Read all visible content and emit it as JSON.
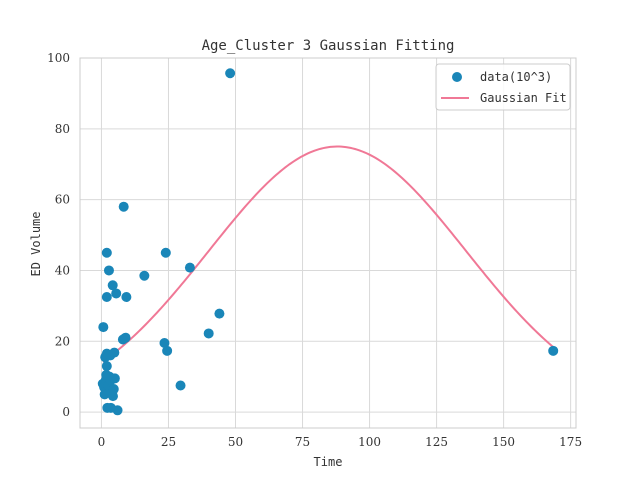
{
  "chart_data": {
    "type": "scatter",
    "title": "Age_Cluster 3 Gaussian Fitting",
    "xlabel": "Time",
    "ylabel": "ED Volume",
    "xlim": [
      -8,
      177
    ],
    "ylim": [
      -4.5,
      100
    ],
    "xticks": [
      0,
      25,
      50,
      75,
      100,
      125,
      150,
      175
    ],
    "yticks": [
      0,
      20,
      40,
      60,
      80,
      100
    ],
    "grid": true,
    "legend": "top-right",
    "colors": {
      "points": "#1a86b8",
      "fit": "#f07896",
      "grid": "#d9d9d9",
      "spine": "#cccccc"
    },
    "series": [
      {
        "name": "data(10^3)",
        "kind": "scatter",
        "points": [
          [
            0.5,
            8
          ],
          [
            0.7,
            24
          ],
          [
            1,
            7
          ],
          [
            1.2,
            5
          ],
          [
            1.4,
            15.5
          ],
          [
            1.6,
            9
          ],
          [
            1.8,
            10.5
          ],
          [
            2,
            45
          ],
          [
            2,
            32.5
          ],
          [
            2,
            16.5
          ],
          [
            2,
            13
          ],
          [
            2.2,
            1.2
          ],
          [
            2.5,
            7.5
          ],
          [
            2.8,
            40
          ],
          [
            3,
            10
          ],
          [
            3.3,
            16
          ],
          [
            3.5,
            9
          ],
          [
            3.5,
            1.2
          ],
          [
            4,
            5.5
          ],
          [
            4.2,
            35.8
          ],
          [
            4.3,
            4.5
          ],
          [
            4.6,
            6.5
          ],
          [
            4.8,
            16.8
          ],
          [
            5,
            9.5
          ],
          [
            5.5,
            33.5
          ],
          [
            6,
            0.5
          ],
          [
            8,
            20.5
          ],
          [
            8.3,
            58
          ],
          [
            9,
            21
          ],
          [
            9.3,
            32.5
          ],
          [
            16,
            38.5
          ],
          [
            23.5,
            19.5
          ],
          [
            24,
            45
          ],
          [
            24.5,
            17.3
          ],
          [
            29.5,
            7.5
          ],
          [
            33,
            40.8
          ],
          [
            40,
            22.2
          ],
          [
            44,
            27.8
          ],
          [
            48,
            95.7
          ],
          [
            168.5,
            17.3
          ]
        ]
      },
      {
        "name": "Gaussian Fit",
        "kind": "line",
        "amplitude": 75,
        "mean": 88,
        "sigma": 48,
        "xrange": [
          0.5,
          168.5
        ]
      }
    ]
  }
}
